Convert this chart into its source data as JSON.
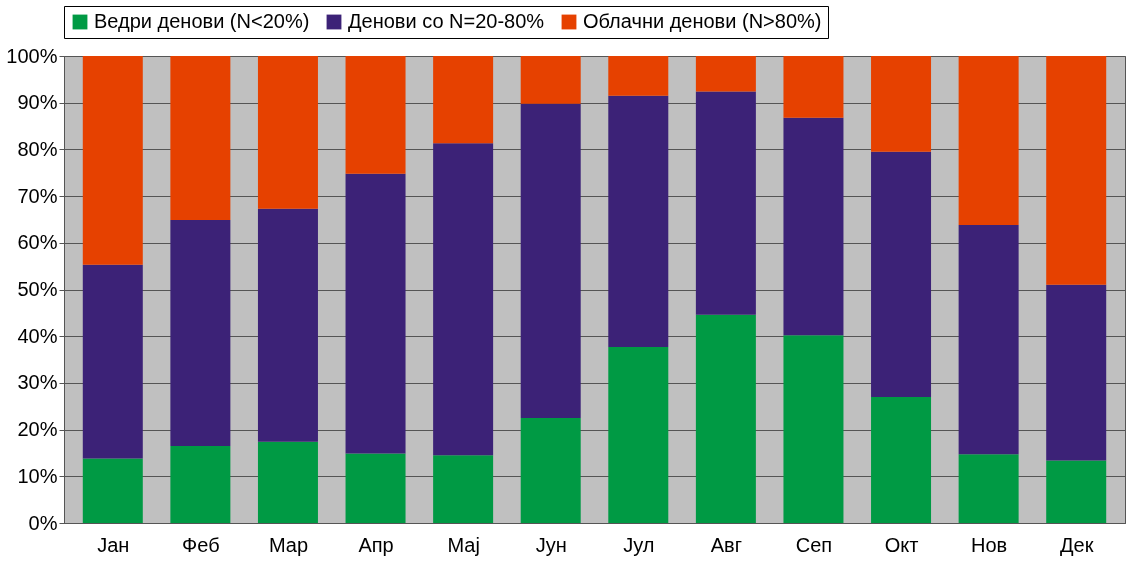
{
  "chart_data": {
    "type": "bar",
    "stacked": true,
    "categories": [
      "Јан",
      "Феб",
      "Мар",
      "Апр",
      "Мај",
      "Јун",
      "Јул",
      "Авг",
      "Сеп",
      "Окт",
      "Нов",
      "Дек"
    ],
    "series": [
      {
        "name": "Ведри денови (N<20%)",
        "color": "#009a44",
        "values": [
          13.8,
          16.5,
          17.4,
          14.9,
          14.5,
          22.5,
          37.7,
          44.6,
          40.2,
          27.0,
          14.7,
          13.4
        ]
      },
      {
        "name": "Денови со N=20-80%",
        "color": "#3c2277",
        "values": [
          41.5,
          48.4,
          49.9,
          59.9,
          66.8,
          67.3,
          53.8,
          47.8,
          46.6,
          52.5,
          49.1,
          37.6
        ]
      },
      {
        "name": "Облачни денови (N>80%)",
        "color": "#e64100",
        "values": [
          44.7,
          35.1,
          32.7,
          25.2,
          18.7,
          10.2,
          8.5,
          7.6,
          13.2,
          20.5,
          36.2,
          49.0
        ]
      }
    ],
    "ylim": [
      0,
      100
    ],
    "yticks": [
      {
        "value": 0,
        "label": "0%"
      },
      {
        "value": 10,
        "label": "10%"
      },
      {
        "value": 20,
        "label": "20%"
      },
      {
        "value": 30,
        "label": "30%"
      },
      {
        "value": 40,
        "label": "40%"
      },
      {
        "value": 50,
        "label": "50%"
      },
      {
        "value": 60,
        "label": "60%"
      },
      {
        "value": 70,
        "label": "70%"
      },
      {
        "value": 80,
        "label": "80%"
      },
      {
        "value": 90,
        "label": "90%"
      },
      {
        "value": 100,
        "label": "100%"
      }
    ],
    "grid": "y",
    "legend": "top"
  }
}
